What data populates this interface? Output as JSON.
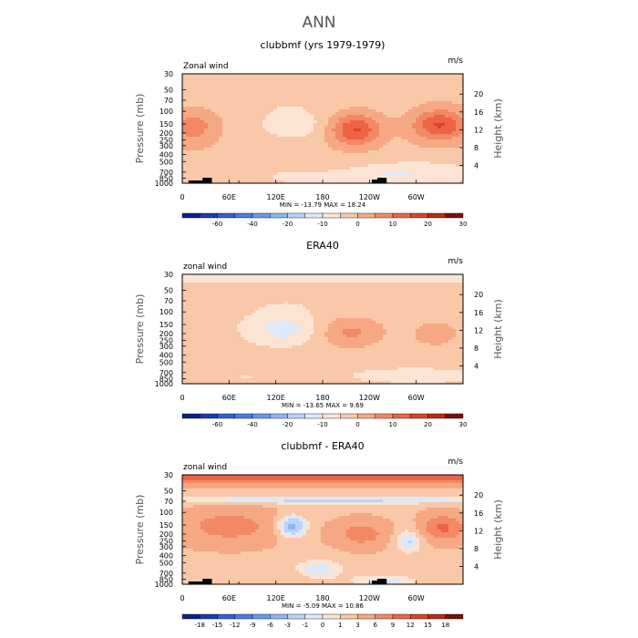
{
  "title": "ANN",
  "chart_data": [
    {
      "type": "heatmap",
      "title": "clubbmf (yrs 1979-1979)",
      "left_label": "Zonal wind",
      "right_label": "m/s",
      "ylabel": "Pressure (mb)",
      "ylabel_right": "Height (km)",
      "x_ticks": [
        "0",
        "60E",
        "120E",
        "180",
        "120W",
        "60W"
      ],
      "y_ticks": [
        "30",
        "50",
        "70",
        "100",
        "150",
        "200",
        "250",
        "300",
        "400",
        "500",
        "700",
        "850",
        "1000"
      ],
      "height_ticks": [
        "20",
        "16",
        "12",
        "8",
        "4"
      ],
      "stats": "MIN = -13.79   MAX =  18.24",
      "min": -13.79,
      "max": 18.24,
      "colorbar_labels": [
        "-60",
        "-40",
        "-20",
        "-10",
        "0",
        "10",
        "20",
        "30"
      ],
      "colors": [
        "#0a1e8c",
        "#1c3cb0",
        "#2f5fd8",
        "#4a7ae8",
        "#6a96f0",
        "#8fb4f6",
        "#b8d2fa",
        "#dce9fb",
        "#fbe4d4",
        "#f9c8a8",
        "#f6a884",
        "#f28864",
        "#ec6444",
        "#d84528",
        "#b82c14",
        "#7a1008"
      ]
    },
    {
      "type": "heatmap",
      "title": "ERA40",
      "left_label": "zonal wind",
      "right_label": "m/s",
      "ylabel": "Pressure (mb)",
      "ylabel_right": "Height (km)",
      "x_ticks": [
        "0",
        "60E",
        "120E",
        "180",
        "120W",
        "60W"
      ],
      "y_ticks": [
        "30",
        "50",
        "70",
        "100",
        "150",
        "200",
        "250",
        "300",
        "400",
        "500",
        "700",
        "850",
        "1000"
      ],
      "height_ticks": [
        "20",
        "16",
        "12",
        "8",
        "4"
      ],
      "stats": "MIN = -13.65   MAX =   9.69",
      "min": -13.65,
      "max": 9.69,
      "colorbar_labels": [
        "-60",
        "-40",
        "-20",
        "-10",
        "0",
        "10",
        "20",
        "30"
      ],
      "colors": [
        "#0a1e8c",
        "#1c3cb0",
        "#2f5fd8",
        "#4a7ae8",
        "#6a96f0",
        "#8fb4f6",
        "#b8d2fa",
        "#dce9fb",
        "#fbe4d4",
        "#f9c8a8",
        "#f6a884",
        "#f28864",
        "#ec6444",
        "#d84528",
        "#b82c14",
        "#7a1008"
      ]
    },
    {
      "type": "heatmap",
      "title": "clubbmf - ERA40",
      "left_label": "zonal wind",
      "right_label": "m/s",
      "ylabel": "Pressure (mb)",
      "ylabel_right": "Height (km)",
      "x_ticks": [
        "0",
        "60E",
        "120E",
        "180",
        "120W",
        "60W"
      ],
      "y_ticks": [
        "30",
        "50",
        "70",
        "100",
        "150",
        "200",
        "250",
        "300",
        "400",
        "500",
        "700",
        "850",
        "1000"
      ],
      "height_ticks": [
        "20",
        "16",
        "12",
        "8",
        "4"
      ],
      "stats": "MIN =  -5.09   MAX =  10.86",
      "min": -5.09,
      "max": 10.86,
      "colorbar_labels": [
        "-18",
        "-15",
        "-12",
        "-9",
        "-6",
        "-3",
        "-1",
        "0",
        "1",
        "3",
        "6",
        "9",
        "12",
        "15",
        "18"
      ],
      "colors": [
        "#0a1e8c",
        "#1c3cb0",
        "#2f5fd8",
        "#4a7ae8",
        "#6a96f0",
        "#8fb4f6",
        "#b8d2fa",
        "#dce9fb",
        "#fbe4d4",
        "#f9c8a8",
        "#f6a884",
        "#f28864",
        "#ec6444",
        "#d84528",
        "#b82c14",
        "#7a1008"
      ]
    }
  ]
}
